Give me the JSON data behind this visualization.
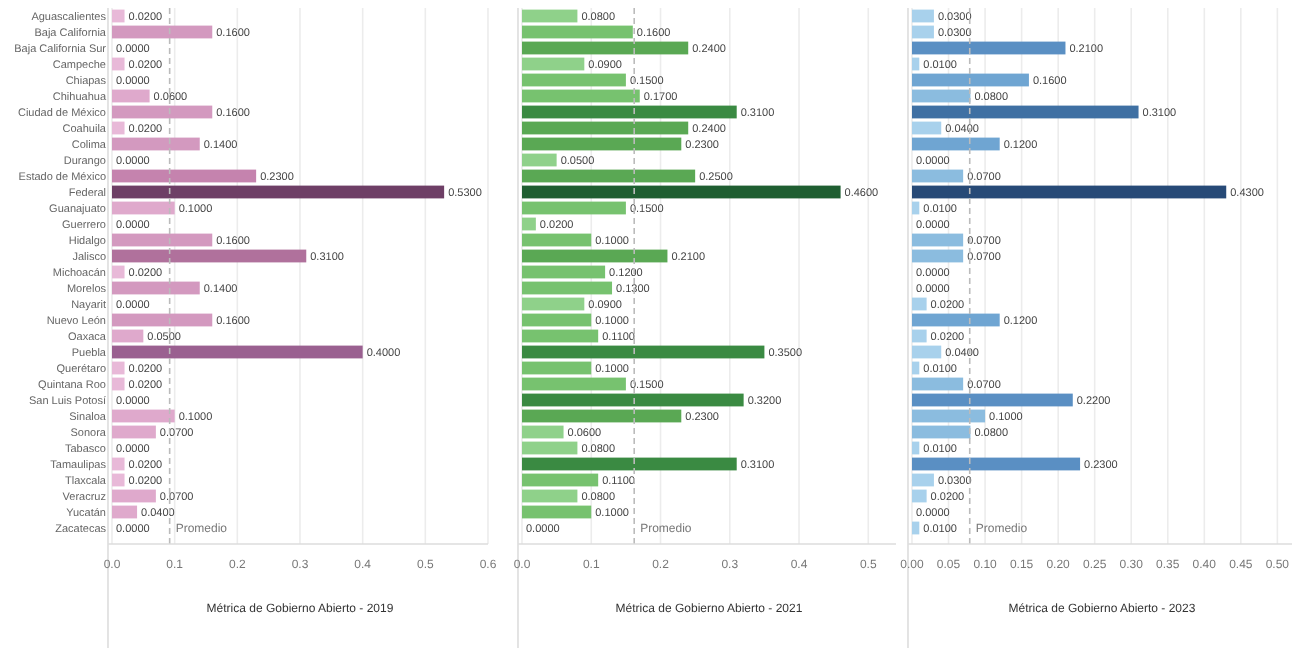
{
  "chart_data": [
    {
      "type": "bar",
      "orientation": "horizontal",
      "xlabel": "Métrica de Gobierno Abierto - 2019",
      "grid": "x",
      "value_labels": [
        "0.0200",
        "0.1600",
        "0.0000",
        "0.0200",
        "0.0000",
        "0.0600",
        "0.1600",
        "0.0200",
        "0.1400",
        "0.0000",
        "0.2300",
        "0.5300",
        "0.1000",
        "0.0000",
        "0.1600",
        "0.3100",
        "0.0200",
        "0.1400",
        "0.0000",
        "0.1600",
        "0.0500",
        "0.4000",
        "0.0200",
        "0.0200",
        "0.0000",
        "0.1000",
        "0.0700",
        "0.0000",
        "0.0200",
        "0.0200",
        "0.0700",
        "0.0400",
        "0.0000"
      ],
      "categories": [
        "Aguascalientes",
        "Baja California",
        "Baja California Sur",
        "Campeche",
        "Chiapas",
        "Chihuahua",
        "Ciudad de México",
        "Coahuila",
        "Colima",
        "Durango",
        "Estado de México",
        "Federal",
        "Guanajuato",
        "Guerrero",
        "Hidalgo",
        "Jalisco",
        "Michoacán",
        "Morelos",
        "Nayarit",
        "Nuevo León",
        "Oaxaca",
        "Puebla",
        "Querétaro",
        "Quintana Roo",
        "San Luis Potosí",
        "Sinaloa",
        "Sonora",
        "Tabasco",
        "Tamaulipas",
        "Tlaxcala",
        "Veracruz",
        "Yucatán",
        "Zacatecas"
      ],
      "values": [
        0.02,
        0.16,
        0,
        0.02,
        0,
        0.06,
        0.16,
        0.02,
        0.14,
        0,
        0.23,
        0.53,
        0.1,
        0,
        0.16,
        0.31,
        0.02,
        0.14,
        0,
        0.16,
        0.05,
        0.4,
        0.02,
        0.02,
        0,
        0.1,
        0.07,
        0,
        0.02,
        0.02,
        0.07,
        0.04,
        0
      ],
      "colors": [
        "#e8b9d8",
        "#d399bf",
        "#e8b9d8",
        "#e8b9d8",
        "#e8b9d8",
        "#dfa9cc",
        "#d399bf",
        "#e8b9d8",
        "#d399bf",
        "#e8b9d8",
        "#c583ae",
        "#6e3f66",
        "#dfa9cc",
        "#e8b9d8",
        "#d399bf",
        "#b0719c",
        "#e8b9d8",
        "#d399bf",
        "#e8b9d8",
        "#d399bf",
        "#dfa9cc",
        "#9a6090",
        "#e8b9d8",
        "#e8b9d8",
        "#e8b9d8",
        "#dfa9cc",
        "#dfa9cc",
        "#e8b9d8",
        "#e8b9d8",
        "#e8b9d8",
        "#dfa9cc",
        "#dfa9cc",
        "#e8b9d8"
      ],
      "xlim": [
        0,
        0.6
      ],
      "xticks": [
        {
          "value": 0,
          "label": "0.0"
        },
        {
          "value": 0.1,
          "label": "0.1"
        },
        {
          "value": 0.2,
          "label": "0.2"
        },
        {
          "value": 0.3,
          "label": "0.3"
        },
        {
          "value": 0.4,
          "label": "0.4"
        },
        {
          "value": 0.5,
          "label": "0.5"
        },
        {
          "value": 0.6,
          "label": "0.6"
        }
      ],
      "ref_lines": [
        {
          "axis": "x",
          "value": 0.092,
          "label": "Promedio",
          "line_style": "dashed",
          "color": "#bbbbbb"
        }
      ]
    },
    {
      "type": "bar",
      "orientation": "horizontal",
      "xlabel": "Métrica de Gobierno Abierto - 2021",
      "grid": "x",
      "tick_labels": "x",
      "categories": [
        null,
        null,
        null,
        null,
        null,
        null,
        null,
        null,
        null,
        null,
        null,
        null,
        null,
        null,
        null,
        null,
        null,
        null,
        null,
        null,
        null,
        null,
        null,
        null,
        null,
        null,
        null,
        null,
        null,
        null,
        null,
        null,
        null
      ],
      "value_labels": [
        "0.0800",
        "0.1600",
        "0.2400",
        "0.0900",
        "0.1500",
        "0.1700",
        "0.3100",
        "0.2400",
        "0.2300",
        "0.0500",
        "0.2500",
        "0.4600",
        "0.1500",
        "0.0200",
        "0.1000",
        "0.2100",
        "0.1200",
        "0.1300",
        "0.0900",
        "0.1000",
        "0.1100",
        "0.3500",
        "0.1000",
        "0.1500",
        "0.3200",
        "0.2300",
        "0.0600",
        "0.0800",
        "0.3100",
        "0.1100",
        "0.0800",
        "0.1000",
        "0.0000"
      ],
      "values": [
        0.08,
        0.16,
        0.24,
        0.09,
        0.15,
        0.17,
        0.31,
        0.24,
        0.23,
        0.05,
        0.25,
        0.46,
        0.15,
        0.02,
        0.1,
        0.21,
        0.12,
        0.13,
        0.09,
        0.1,
        0.11,
        0.35,
        0.1,
        0.15,
        0.32,
        0.23,
        0.06,
        0.08,
        0.31,
        0.11,
        0.08,
        0.1,
        0
      ],
      "colors": [
        "#8fd18a",
        "#77c26f",
        "#5aa854",
        "#8fd18a",
        "#77c26f",
        "#77c26f",
        "#3a8a42",
        "#5aa854",
        "#5aa854",
        "#8fd18a",
        "#5aa854",
        "#1f5e31",
        "#77c26f",
        "#8fd18a",
        "#77c26f",
        "#5aa854",
        "#77c26f",
        "#77c26f",
        "#8fd18a",
        "#77c26f",
        "#77c26f",
        "#3a8a42",
        "#77c26f",
        "#77c26f",
        "#3a8a42",
        "#5aa854",
        "#8fd18a",
        "#8fd18a",
        "#3a8a42",
        "#77c26f",
        "#8fd18a",
        "#77c26f",
        "#8fd18a"
      ],
      "xlim": [
        0,
        0.54
      ],
      "xticks": [
        {
          "value": 0,
          "label": "0.0"
        },
        {
          "value": 0.1,
          "label": "0.1"
        },
        {
          "value": 0.2,
          "label": "0.2"
        },
        {
          "value": 0.3,
          "label": "0.3"
        },
        {
          "value": 0.4,
          "label": "0.4"
        },
        {
          "value": 0.5,
          "label": "0.5"
        }
      ],
      "ref_lines": [
        {
          "axis": "x",
          "value": 0.162,
          "label": "Promedio",
          "line_style": "dashed",
          "color": "#bbbbbb"
        }
      ]
    },
    {
      "type": "bar",
      "orientation": "horizontal",
      "xlabel": "Métrica de Gobierno Abierto - 2023",
      "grid": "x",
      "tick_labels": "x",
      "value_labels": [
        "0.0300",
        "0.0300",
        "0.2100",
        "0.0100",
        "0.1600",
        "0.0800",
        "0.3100",
        "0.0400",
        "0.1200",
        "0.0000",
        "0.0700",
        "0.4300",
        "0.0100",
        "0.0000",
        "0.0700",
        "0.0700",
        "0.0000",
        "0.0000",
        "0.0200",
        "0.1200",
        "0.0200",
        "0.0400",
        "0.0100",
        "0.0700",
        "0.2200",
        "0.1000",
        "0.0800",
        "0.0100",
        "0.2300",
        "0.0300",
        "0.0200",
        "0.0000",
        "0.0100"
      ],
      "categories": [
        null,
        null,
        null,
        null,
        null,
        null,
        null,
        null,
        null,
        null,
        null,
        null,
        null,
        null,
        null,
        null,
        null,
        null,
        null,
        null,
        null,
        null,
        null,
        null,
        null,
        null,
        null,
        null,
        null,
        null,
        null,
        null,
        null
      ],
      "values": [
        0.03,
        0.03,
        0.21,
        0.01,
        0.16,
        0.08,
        0.31,
        0.04,
        0.12,
        0,
        0.07,
        0.43,
        0.01,
        0,
        0.07,
        0.07,
        0,
        0,
        0.02,
        0.12,
        0.02,
        0.04,
        0.01,
        0.07,
        0.22,
        0.1,
        0.08,
        0.01,
        0.23,
        0.03,
        0.02,
        0,
        0.01
      ],
      "colors": [
        "#a8d1ec",
        "#a8d1ec",
        "#5a8fc3",
        "#a8d1ec",
        "#6fa5d2",
        "#8bbcdf",
        "#3f70a3",
        "#a8d1ec",
        "#6fa5d2",
        "#a8d1ec",
        "#8bbcdf",
        "#274a77",
        "#a8d1ec",
        "#a8d1ec",
        "#8bbcdf",
        "#8bbcdf",
        "#a8d1ec",
        "#a8d1ec",
        "#a8d1ec",
        "#6fa5d2",
        "#a8d1ec",
        "#a8d1ec",
        "#a8d1ec",
        "#8bbcdf",
        "#5a8fc3",
        "#8bbcdf",
        "#8bbcdf",
        "#a8d1ec",
        "#5a8fc3",
        "#a8d1ec",
        "#a8d1ec",
        "#a8d1ec",
        "#a8d1ec"
      ],
      "xlim": [
        0,
        0.52
      ],
      "xticks": [
        {
          "value": 0,
          "label": "0.00"
        },
        {
          "value": 0.05,
          "label": "0.05"
        },
        {
          "value": 0.1,
          "label": "0.10"
        },
        {
          "value": 0.15,
          "label": "0.15"
        },
        {
          "value": 0.2,
          "label": "0.20"
        },
        {
          "value": 0.25,
          "label": "0.25"
        },
        {
          "value": 0.3,
          "label": "0.30"
        },
        {
          "value": 0.35,
          "label": "0.35"
        },
        {
          "value": 0.4,
          "label": "0.40"
        },
        {
          "value": 0.45,
          "label": "0.45"
        },
        {
          "value": 0.5,
          "label": "0.50"
        }
      ],
      "ref_lines": [
        {
          "axis": "x",
          "value": 0.079,
          "label": "Promedio",
          "line_style": "dashed",
          "color": "#bbbbbb"
        }
      ]
    }
  ]
}
